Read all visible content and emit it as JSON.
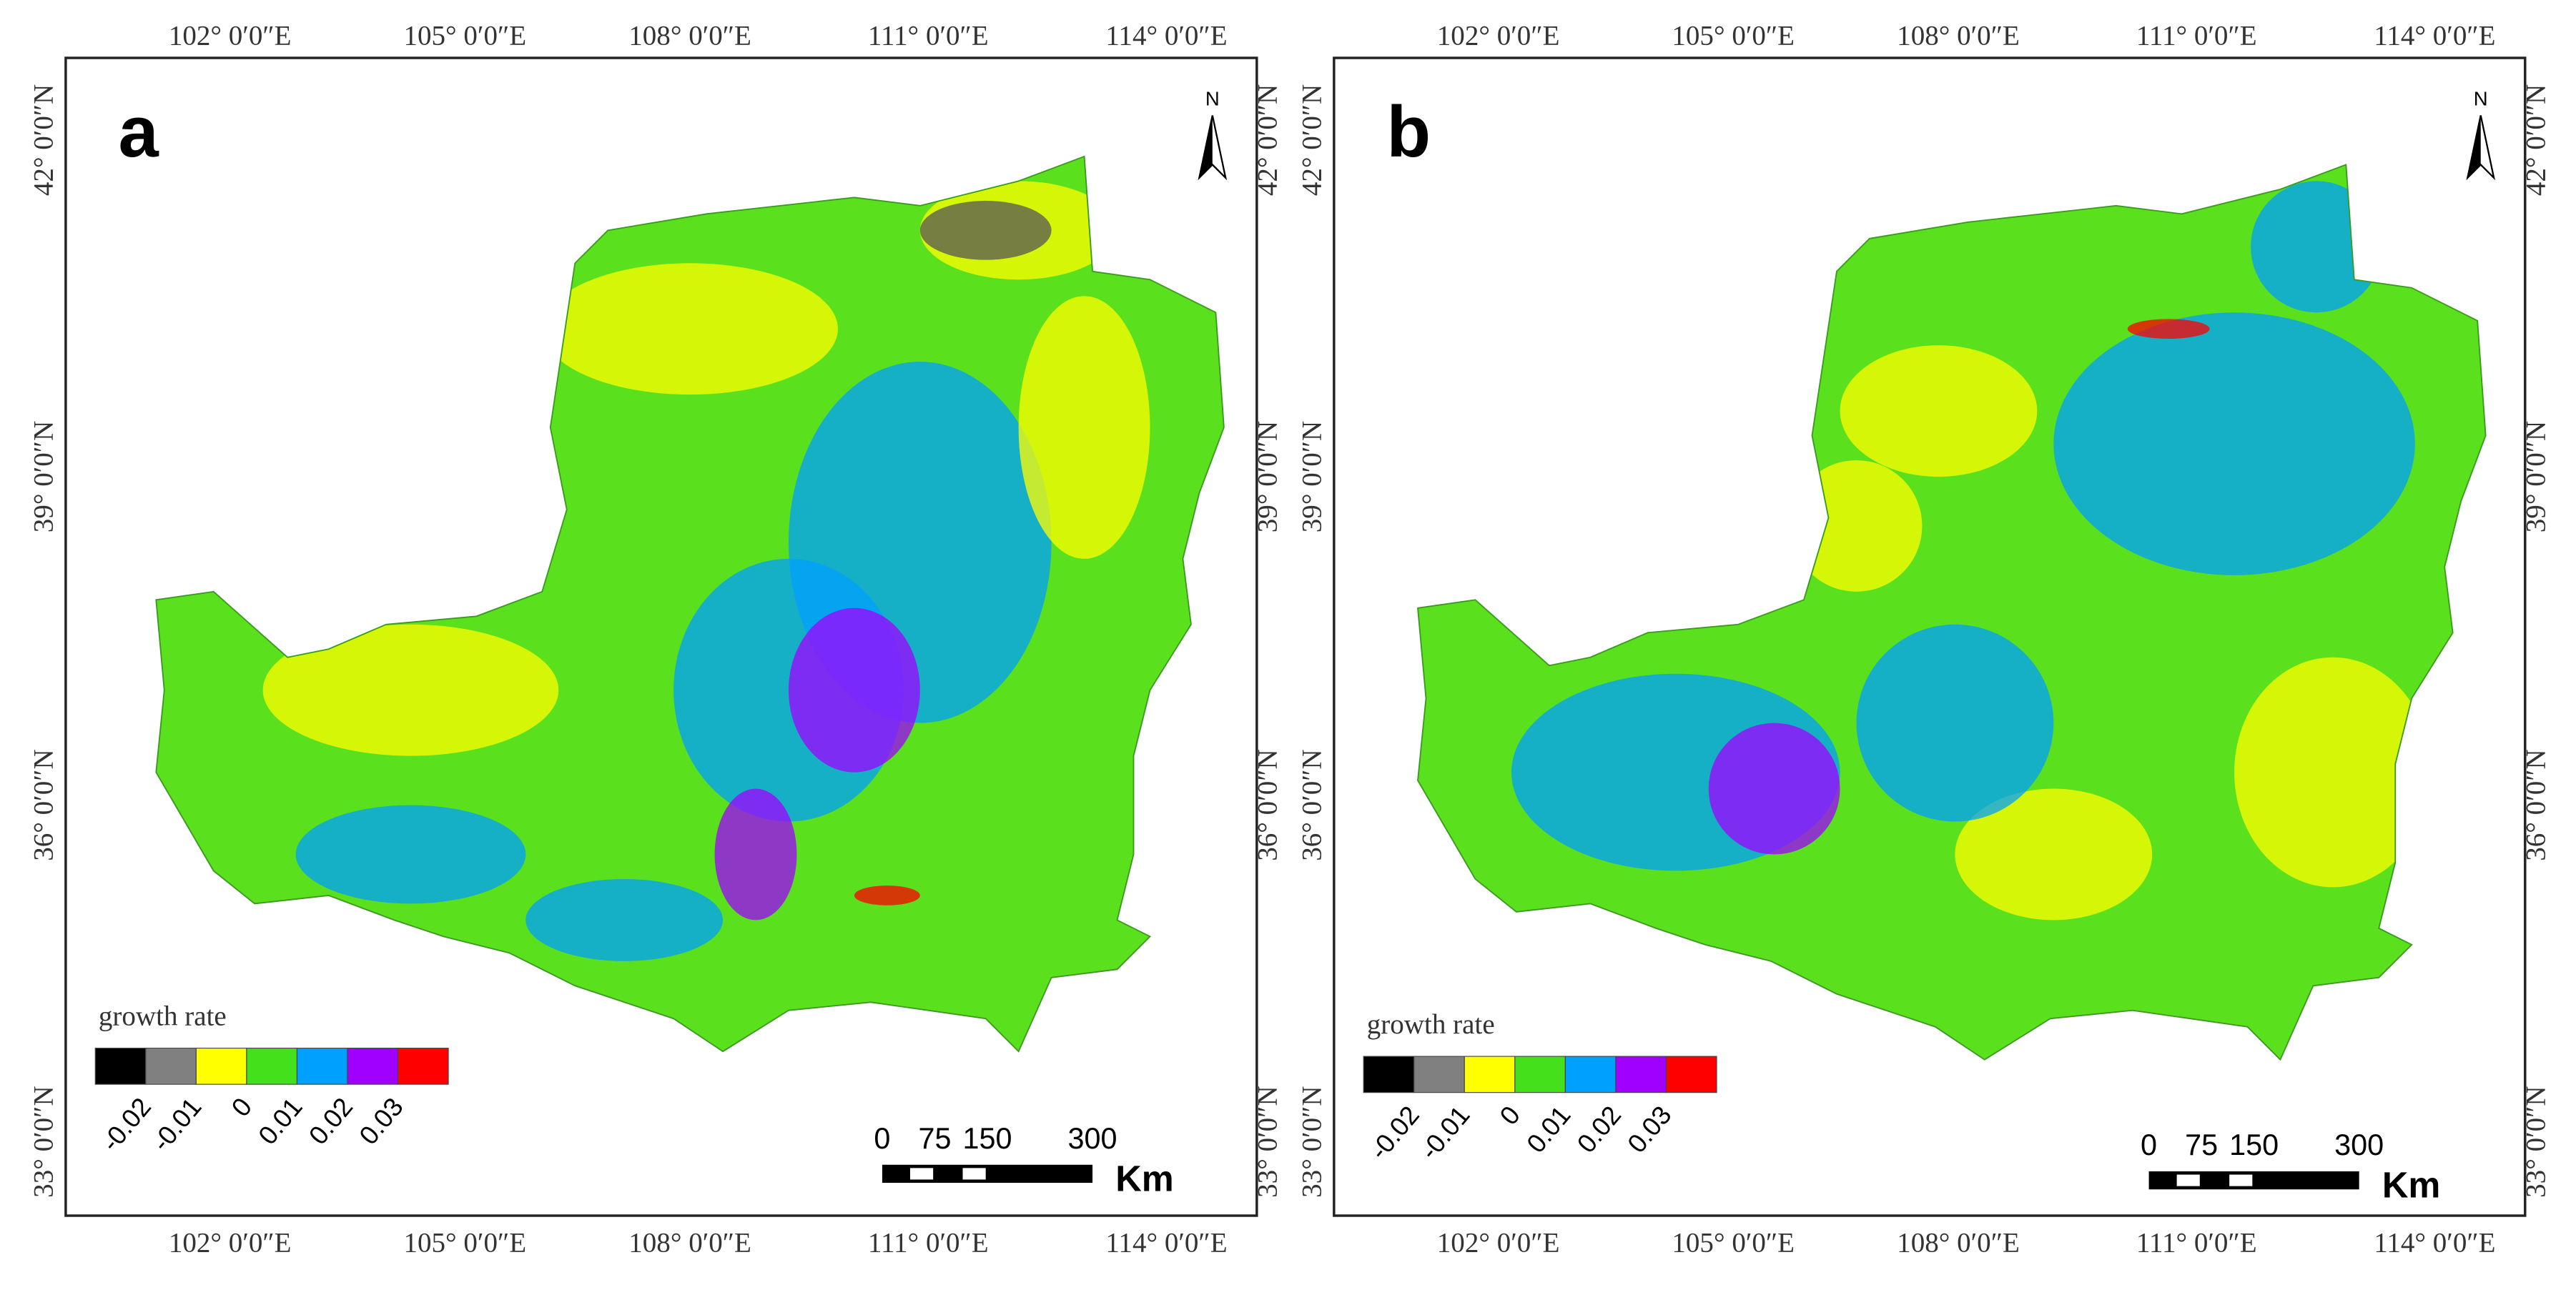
{
  "panels": [
    {
      "letter": "a",
      "north": "N",
      "lon_labels": [
        "102° 0′0″E",
        "105° 0′0″E",
        "108° 0′0″E",
        "111° 0′0″E",
        "114° 0′0″E"
      ],
      "lat_labels": [
        "42° 0′0″N",
        "39° 0′0″N",
        "36° 0′0″N",
        "33° 0′0″N"
      ],
      "legend": {
        "title": "growth rate",
        "colors": [
          "#000000",
          "#808080",
          "#ffff00",
          "#44e01c",
          "#00a0ff",
          "#a000ff",
          "#ff0000"
        ],
        "labels": [
          -0.02,
          -0.01,
          0,
          0.01,
          0.02,
          0.03
        ]
      },
      "scale": {
        "labels": [
          0,
          75,
          150,
          300
        ],
        "unit": "Km"
      }
    },
    {
      "letter": "b",
      "north": "N",
      "lon_labels": [
        "102° 0′0″E",
        "105° 0′0″E",
        "108° 0′0″E",
        "111° 0′0″E",
        "114° 0′0″E"
      ],
      "lat_labels": [
        "42° 0′0″N",
        "39° 0′0″N",
        "36° 0′0″N",
        "33° 0′0″N"
      ],
      "legend": {
        "title": "growth rate",
        "colors": [
          "#000000",
          "#808080",
          "#ffff00",
          "#44e01c",
          "#00a0ff",
          "#a000ff",
          "#ff0000"
        ],
        "labels": [
          -0.02,
          -0.01,
          0,
          0.01,
          0.02,
          0.03
        ]
      },
      "scale": {
        "labels": [
          0,
          75,
          150,
          300
        ],
        "unit": "Km"
      }
    }
  ]
}
